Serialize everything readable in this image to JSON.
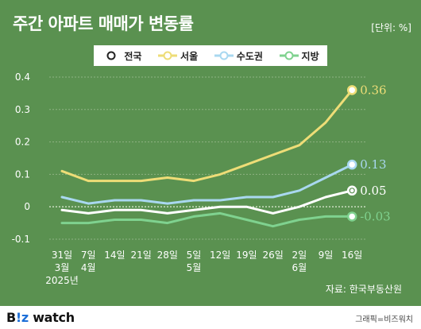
{
  "title": "주간 아파트 매매가 변동률",
  "unit": "[단위: %]",
  "source": "자료: 한국부동산원",
  "credit": "그래픽=비즈워치",
  "brand": {
    "prefix": "B",
    "mark": "!z",
    "suffix": " watch"
  },
  "legend": [
    {
      "name": "전국",
      "color": "#ffffff"
    },
    {
      "name": "서울",
      "color": "#eedd77"
    },
    {
      "name": "수도권",
      "color": "#a9d8f0"
    },
    {
      "name": "지방",
      "color": "#7fd28f"
    }
  ],
  "chart_data": {
    "type": "line",
    "categories": [
      "31일",
      "7일",
      "14일",
      "21일",
      "28일",
      "5일",
      "12일",
      "19일",
      "26일",
      "2일",
      "9일",
      "16일"
    ],
    "category_sublabels": [
      [
        "3월",
        "2025년"
      ],
      [
        "4월"
      ],
      [],
      [],
      [],
      [
        "5월"
      ],
      [],
      [],
      [],
      [
        "6월"
      ],
      [],
      []
    ],
    "ylim": [
      -0.1,
      0.4
    ],
    "yticks": [
      "-0.1",
      "0",
      "0.1",
      "0.2",
      "0.3",
      "0.4"
    ],
    "grid": true,
    "series": [
      {
        "name": "전국",
        "color": "#ffffff",
        "values": [
          -0.01,
          -0.02,
          -0.01,
          -0.01,
          -0.02,
          -0.01,
          0.0,
          0.0,
          -0.02,
          0.0,
          0.03,
          0.05
        ],
        "end_label": "0.05"
      },
      {
        "name": "서울",
        "color": "#eedd77",
        "values": [
          0.11,
          0.08,
          0.08,
          0.08,
          0.09,
          0.08,
          0.1,
          0.13,
          0.16,
          0.19,
          0.26,
          0.36
        ],
        "end_label": "0.36"
      },
      {
        "name": "수도권",
        "color": "#a9d8f0",
        "values": [
          0.03,
          0.01,
          0.02,
          0.02,
          0.01,
          0.02,
          0.02,
          0.03,
          0.03,
          0.05,
          0.09,
          0.13
        ],
        "end_label": "0.13"
      },
      {
        "name": "지방",
        "color": "#7fd28f",
        "values": [
          -0.05,
          -0.05,
          -0.04,
          -0.04,
          -0.05,
          -0.03,
          -0.02,
          -0.04,
          -0.06,
          -0.04,
          -0.03,
          -0.03
        ],
        "end_label": "-0.03"
      }
    ]
  }
}
